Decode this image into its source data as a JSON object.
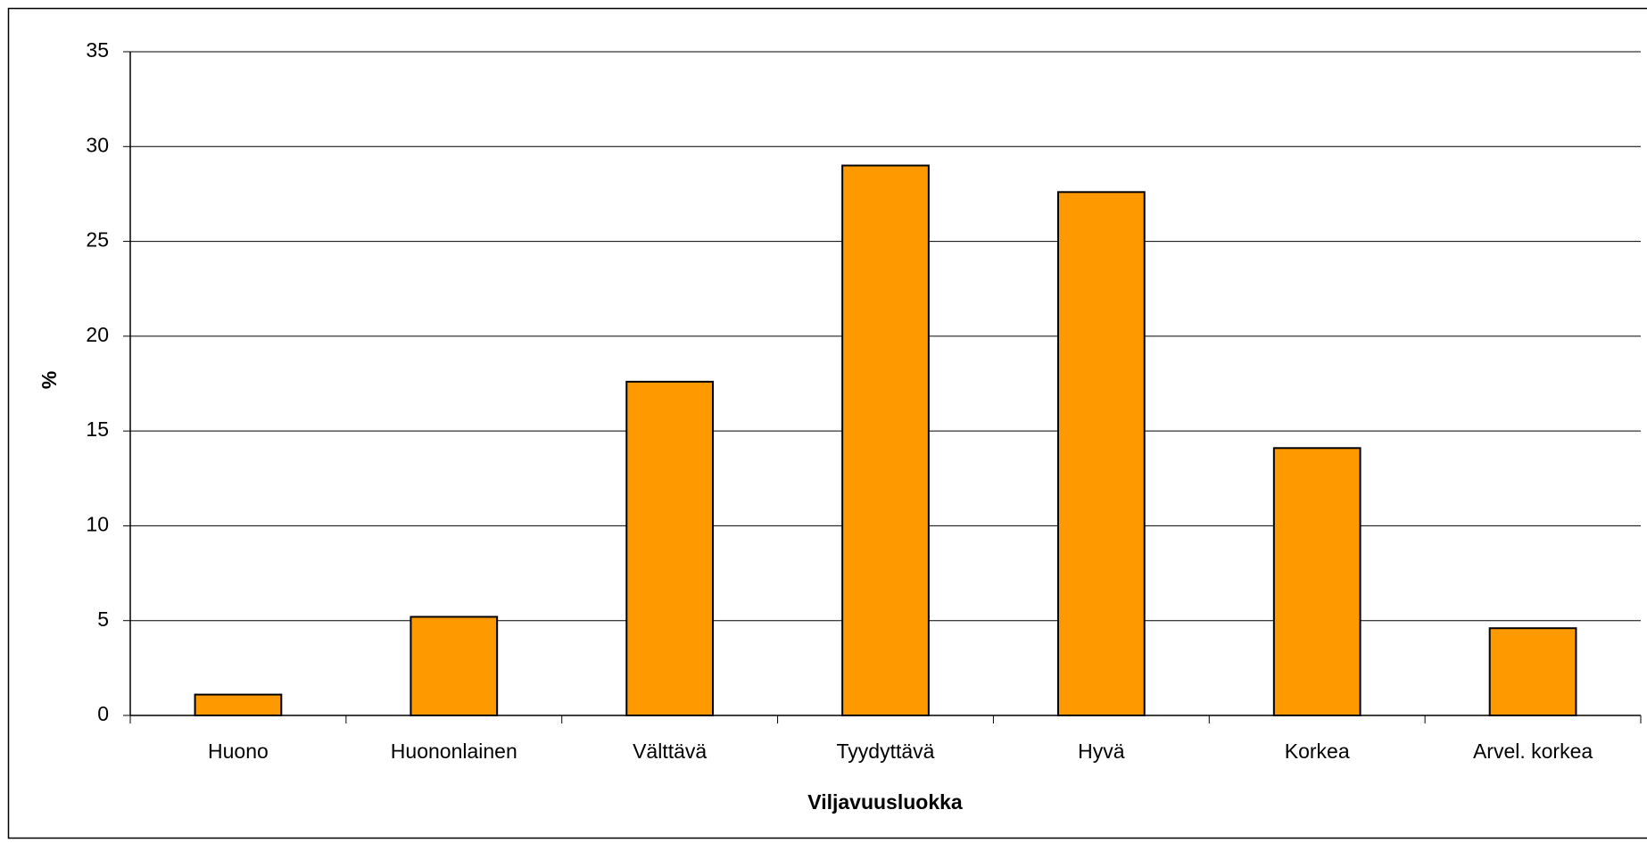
{
  "chart_data": {
    "type": "bar",
    "x_label": "Viljavuusluokka",
    "y_label": "%",
    "categories": [
      "Huono",
      "Huononlainen",
      "Välttävä",
      "Tyydyttävä",
      "Hyvä",
      "Korkea",
      "Arvel. korkea"
    ],
    "values": [
      1.1,
      5.2,
      17.6,
      29.0,
      27.6,
      14.1,
      4.6
    ],
    "color": "#ff9900",
    "ylim": [
      0,
      35
    ],
    "yticks": [
      0,
      5,
      10,
      15,
      20,
      25,
      30,
      35
    ],
    "grid": true
  }
}
